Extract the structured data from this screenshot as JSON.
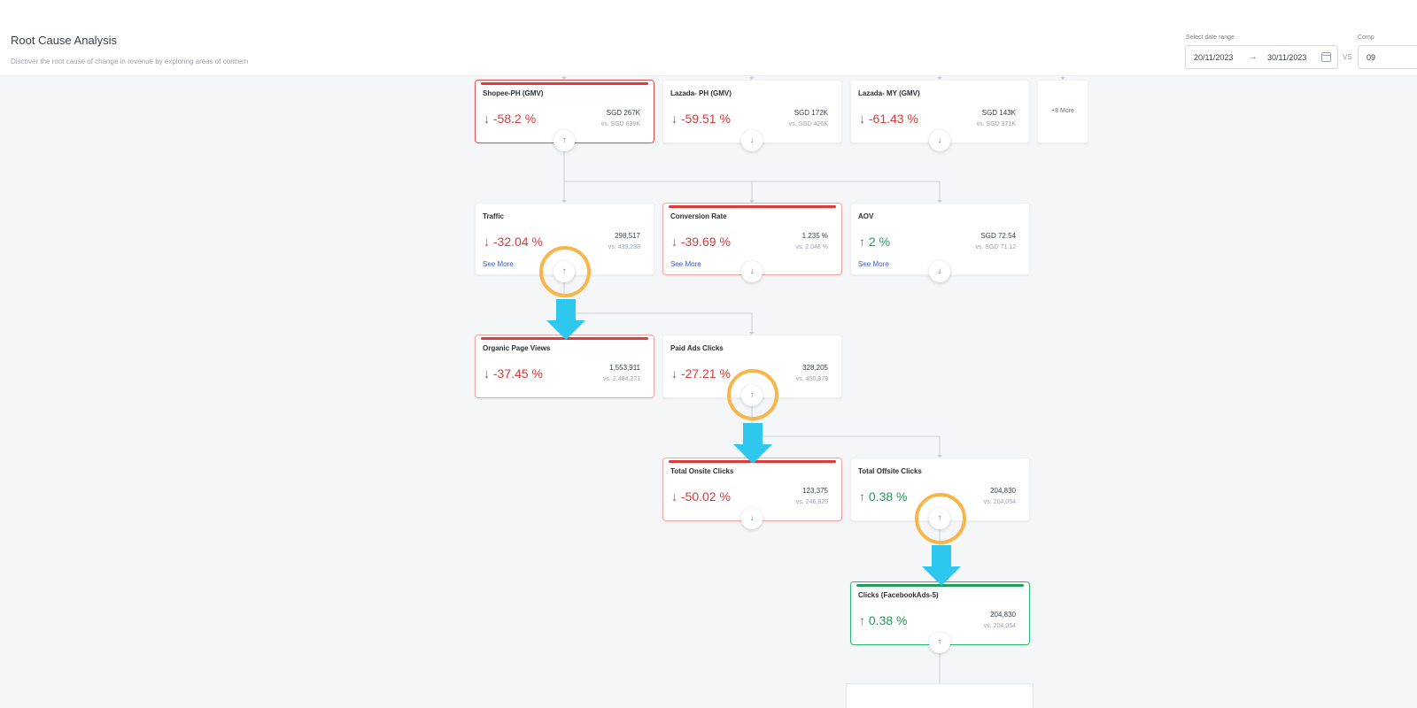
{
  "header": {
    "title": "Root Cause Analysis",
    "subtitle": "Discover the root cause of change in revenue by exploring areas of concern",
    "date_label": "Select date range",
    "compare_label": "Comp",
    "date_start": "20/11/2023",
    "date_arrow": "→",
    "date_end": "30/11/2023",
    "vs": "VS",
    "compare_value": "09"
  },
  "level1": [
    {
      "title": "Shopee-PH (GMV)",
      "pct": "-58.2 %",
      "value": "SGD 267K",
      "compare": "vs. SGD 639K",
      "arrow": "↓",
      "toggle": "↑"
    },
    {
      "title": "Lazada- PH (GMV)",
      "pct": "-59.51 %",
      "value": "SGD 172K",
      "compare": "vs. SGD 426K",
      "arrow": "↓",
      "toggle": "↓"
    },
    {
      "title": "Lazada- MY (GMV)",
      "pct": "-61.43 %",
      "value": "SGD 143K",
      "compare": "vs. SGD 371K",
      "arrow": "↓",
      "toggle": "↓"
    }
  ],
  "more_card": {
    "label": "+8 More"
  },
  "level2": [
    {
      "title": "Traffic",
      "pct": "-32.04 %",
      "value": "298,517",
      "compare": "vs. 439,238",
      "arrow": "↓",
      "see_more": "See More",
      "toggle": "↑"
    },
    {
      "title": "Conversion Rate",
      "pct": "-39.69 %",
      "value": "1.235 %",
      "compare": "vs. 2.048 %",
      "arrow": "↓",
      "see_more": "See More",
      "toggle": "↓"
    },
    {
      "title": "AOV",
      "pct": "2 %",
      "value": "SGD 72.54",
      "compare": "vs. SGD 71.12",
      "arrow": "↑",
      "see_more": "See More",
      "toggle": "↓"
    }
  ],
  "level3": [
    {
      "title": "Organic Page Views",
      "pct": "-37.45 %",
      "value": "1,553,911",
      "compare": "vs. 2,484,271",
      "arrow": "↓"
    },
    {
      "title": "Paid Ads Clicks",
      "pct": "-27.21 %",
      "value": "328,205",
      "compare": "vs. 450,879",
      "arrow": "↓",
      "toggle": "↑"
    }
  ],
  "level4": [
    {
      "title": "Total Onsite Clicks",
      "pct": "-50.02 %",
      "value": "123,375",
      "compare": "vs. 246,825",
      "arrow": "↓",
      "toggle": "↓"
    },
    {
      "title": "Total Offsite Clicks",
      "pct": "0.38 %",
      "value": "204,830",
      "compare": "vs. 204,054",
      "arrow": "↑",
      "toggle": "↑"
    }
  ],
  "level5": [
    {
      "title": "Clicks (FacebookAds-5)",
      "pct": "0.38 %",
      "value": "204,830",
      "compare": "vs. 204,054",
      "arrow": "↑",
      "toggle": "↑"
    }
  ],
  "colors": {
    "negative": "#d93a3a",
    "positive": "#1f9d5a",
    "highlight_circle": "#f7b54a",
    "highlight_arrow": "#2ec8ef",
    "link": "#3a5bdc"
  }
}
